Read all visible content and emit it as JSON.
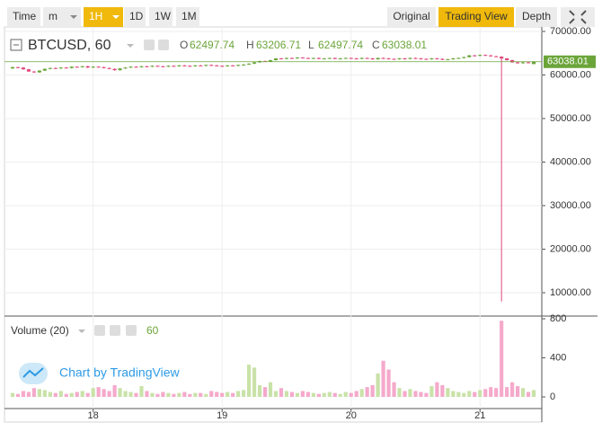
{
  "toolbar": {
    "left": [
      "Time",
      "m",
      "1H",
      "1D",
      "1W",
      "1M"
    ],
    "left_active": 2,
    "right": [
      "Original",
      "Trading View",
      "Depth"
    ],
    "right_active": 1
  },
  "legend": {
    "symbol": "BTCUSD, 60",
    "labels": [
      "O",
      "H",
      "L",
      "C"
    ]
  },
  "volume_legend": {
    "title": "Volume (20)",
    "value": 60
  },
  "watermark": "Chart by TradingView",
  "chart_data": {
    "type": "candlestick",
    "ohlc": [
      [
        61500,
        61900,
        61400,
        61800
      ],
      [
        61800,
        61900,
        61600,
        61700
      ],
      [
        61700,
        61800,
        61200,
        61300
      ],
      [
        61300,
        61400,
        60700,
        60800
      ],
      [
        60800,
        60900,
        60500,
        60600
      ],
      [
        60600,
        61100,
        60500,
        61000
      ],
      [
        61000,
        61500,
        60900,
        61400
      ],
      [
        61400,
        61700,
        61300,
        61600
      ],
      [
        61600,
        61700,
        61400,
        61500
      ],
      [
        61500,
        61800,
        61400,
        61700
      ],
      [
        61700,
        61800,
        61500,
        61600
      ],
      [
        61600,
        62000,
        61500,
        61900
      ],
      [
        61900,
        62000,
        61700,
        61800
      ],
      [
        61800,
        62100,
        61700,
        62000
      ],
      [
        62000,
        62100,
        61600,
        61700
      ],
      [
        61700,
        62000,
        61600,
        61900
      ],
      [
        61900,
        62000,
        61700,
        61800
      ],
      [
        61800,
        61900,
        61500,
        61600
      ],
      [
        61600,
        61700,
        61300,
        61400
      ],
      [
        61400,
        61500,
        61000,
        61100
      ],
      [
        61100,
        61600,
        61000,
        61500
      ],
      [
        61500,
        61800,
        61400,
        61700
      ],
      [
        61700,
        62000,
        61600,
        61900
      ],
      [
        61900,
        62000,
        61700,
        61800
      ],
      [
        61800,
        62100,
        61700,
        62000
      ],
      [
        62000,
        62100,
        61800,
        61900
      ],
      [
        61900,
        62200,
        61800,
        62100
      ],
      [
        62100,
        62200,
        61900,
        62000
      ],
      [
        62000,
        62100,
        61800,
        61900
      ],
      [
        61900,
        62200,
        61800,
        62100
      ],
      [
        62100,
        62200,
        61900,
        62000
      ],
      [
        62000,
        62300,
        61900,
        62200
      ],
      [
        62200,
        62300,
        62000,
        62100
      ],
      [
        62100,
        62200,
        61900,
        62000
      ],
      [
        62000,
        62300,
        61900,
        62200
      ],
      [
        62200,
        62300,
        62000,
        62100
      ],
      [
        62100,
        62400,
        62000,
        62300
      ],
      [
        62300,
        62400,
        62100,
        62200
      ],
      [
        62200,
        62300,
        62000,
        62100
      ],
      [
        62100,
        62200,
        61900,
        62000
      ],
      [
        62000,
        62300,
        61900,
        62200
      ],
      [
        62200,
        62300,
        62000,
        62100
      ],
      [
        62100,
        62400,
        62000,
        62300
      ],
      [
        62300,
        62500,
        62200,
        62400
      ],
      [
        62400,
        62700,
        62300,
        62600
      ],
      [
        62600,
        63000,
        62500,
        62900
      ],
      [
        62900,
        63300,
        62800,
        63200
      ],
      [
        63200,
        63300,
        63000,
        63100
      ],
      [
        63100,
        63500,
        63000,
        63400
      ],
      [
        63400,
        63900,
        63300,
        63800
      ],
      [
        63800,
        63900,
        63600,
        63700
      ],
      [
        63700,
        64000,
        63600,
        63900
      ],
      [
        63900,
        64000,
        63700,
        63800
      ],
      [
        63800,
        64100,
        63700,
        64000
      ],
      [
        64000,
        64100,
        63800,
        63900
      ],
      [
        63900,
        64000,
        63700,
        63800
      ],
      [
        63800,
        64000,
        63700,
        63900
      ],
      [
        63900,
        64000,
        63600,
        63700
      ],
      [
        63700,
        63900,
        63600,
        63800
      ],
      [
        63800,
        64000,
        63700,
        63900
      ],
      [
        63900,
        64000,
        63600,
        63700
      ],
      [
        63700,
        63900,
        63600,
        63800
      ],
      [
        63800,
        64000,
        63700,
        63900
      ],
      [
        63900,
        64000,
        63700,
        63800
      ],
      [
        63800,
        63900,
        63600,
        63700
      ],
      [
        63700,
        64000,
        63600,
        63900
      ],
      [
        63900,
        64000,
        63700,
        63800
      ],
      [
        63800,
        63900,
        63500,
        63600
      ],
      [
        63600,
        64000,
        63500,
        63900
      ],
      [
        63900,
        64000,
        63700,
        63800
      ],
      [
        63800,
        63900,
        63600,
        63700
      ],
      [
        63700,
        63800,
        63500,
        63600
      ],
      [
        63600,
        63900,
        63500,
        63800
      ],
      [
        63800,
        63900,
        63600,
        63700
      ],
      [
        63700,
        64000,
        63600,
        63900
      ],
      [
        63900,
        64000,
        63700,
        63800
      ],
      [
        63800,
        63900,
        63600,
        63700
      ],
      [
        63700,
        63800,
        63500,
        63600
      ],
      [
        63600,
        63900,
        63500,
        63800
      ],
      [
        63800,
        63900,
        63600,
        63700
      ],
      [
        63700,
        63800,
        63400,
        63500
      ],
      [
        63500,
        63700,
        63400,
        63600
      ],
      [
        63600,
        63900,
        63500,
        63800
      ],
      [
        63800,
        64000,
        63700,
        63900
      ],
      [
        63900,
        64200,
        63800,
        64100
      ],
      [
        64100,
        64600,
        64000,
        64500
      ],
      [
        64500,
        64600,
        64300,
        64400
      ],
      [
        64400,
        64700,
        64300,
        64600
      ],
      [
        64600,
        64700,
        64400,
        64500
      ],
      [
        64500,
        64600,
        64200,
        64300
      ],
      [
        64300,
        64400,
        64100,
        64200
      ],
      [
        64200,
        64300,
        8000,
        63800
      ],
      [
        63800,
        63900,
        63300,
        63400
      ],
      [
        63400,
        63500,
        62800,
        62900
      ],
      [
        62900,
        63000,
        62600,
        62700
      ],
      [
        62700,
        63000,
        62600,
        62900
      ],
      [
        62900,
        63000,
        62700,
        62800
      ],
      [
        62497.74,
        63206.71,
        62497.74,
        63038.01
      ]
    ],
    "volume": [
      40,
      30,
      60,
      50,
      90,
      80,
      70,
      50,
      40,
      60,
      30,
      40,
      50,
      60,
      40,
      90,
      100,
      80,
      60,
      120,
      90,
      60,
      50,
      40,
      110,
      60,
      40,
      30,
      50,
      40,
      30,
      40,
      50,
      30,
      40,
      40,
      30,
      60,
      50,
      40,
      50,
      40,
      60,
      70,
      330,
      300,
      120,
      100,
      150,
      60,
      90,
      60,
      50,
      40,
      60,
      50,
      40,
      30,
      40,
      50,
      40,
      30,
      50,
      40,
      60,
      80,
      100,
      120,
      240,
      370,
      280,
      150,
      90,
      60,
      80,
      60,
      50,
      40,
      110,
      150,
      120,
      90,
      60,
      50,
      40,
      60,
      50,
      70,
      80,
      100,
      90,
      780,
      100,
      150,
      110,
      90,
      50,
      70
    ],
    "xlim": [
      -1.5,
      98.5
    ],
    "xticks": [
      {
        "value": 15,
        "label": "18"
      },
      {
        "value": 39,
        "label": "19"
      },
      {
        "value": 63,
        "label": "20"
      },
      {
        "value": 87,
        "label": "21"
      }
    ],
    "ylim": [
      4639,
      71031
    ],
    "yticks": [
      {
        "value": 10000,
        "label": "10000.00"
      },
      {
        "value": 20000,
        "label": "20000.00"
      },
      {
        "value": 30000,
        "label": "30000.00"
      },
      {
        "value": 40000,
        "label": "40000.00"
      },
      {
        "value": 50000,
        "label": "50000.00"
      },
      {
        "value": 60000,
        "label": "60000.00"
      },
      {
        "value": 70000,
        "label": "70000.00"
      }
    ],
    "volume_ylim": [
      0,
      828
    ],
    "volume_yticks": [
      0,
      400,
      800
    ],
    "up_color": "#6ba53a",
    "down_color": "#e0457b",
    "volume_up_color": "#c9e2a8",
    "volume_down_color": "#f5a9cb",
    "grid": true
  }
}
